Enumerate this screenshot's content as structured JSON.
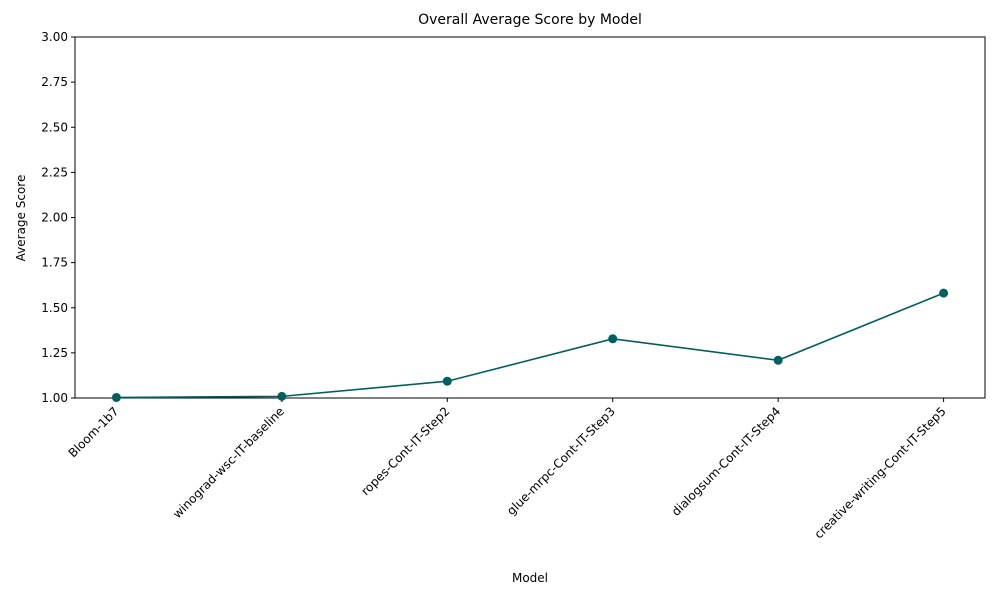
{
  "chart_data": {
    "type": "line",
    "title": "Overall Average Score by Model",
    "xlabel": "Model",
    "ylabel": "Average Score",
    "categories": [
      "Bloom-1b7",
      "winograd-wsc-IT-baseline",
      "ropes-Cont-IT-Step2",
      "glue-mrpc-Cont-IT-Step3",
      "dialogsum-Cont-IT-Step4",
      "creative-writing-Cont-IT-Step5"
    ],
    "series": [
      {
        "values": [
          1.003,
          1.009,
          1.093,
          1.328,
          1.209,
          1.581
        ]
      }
    ],
    "ylim": [
      1.0,
      3.0
    ],
    "yticks": [
      "1.00",
      "1.25",
      "1.50",
      "1.75",
      "2.00",
      "2.25",
      "2.50",
      "2.75",
      "3.00"
    ],
    "grid": false,
    "line_color": "#005f5f",
    "marker_color": "#005f5f"
  }
}
